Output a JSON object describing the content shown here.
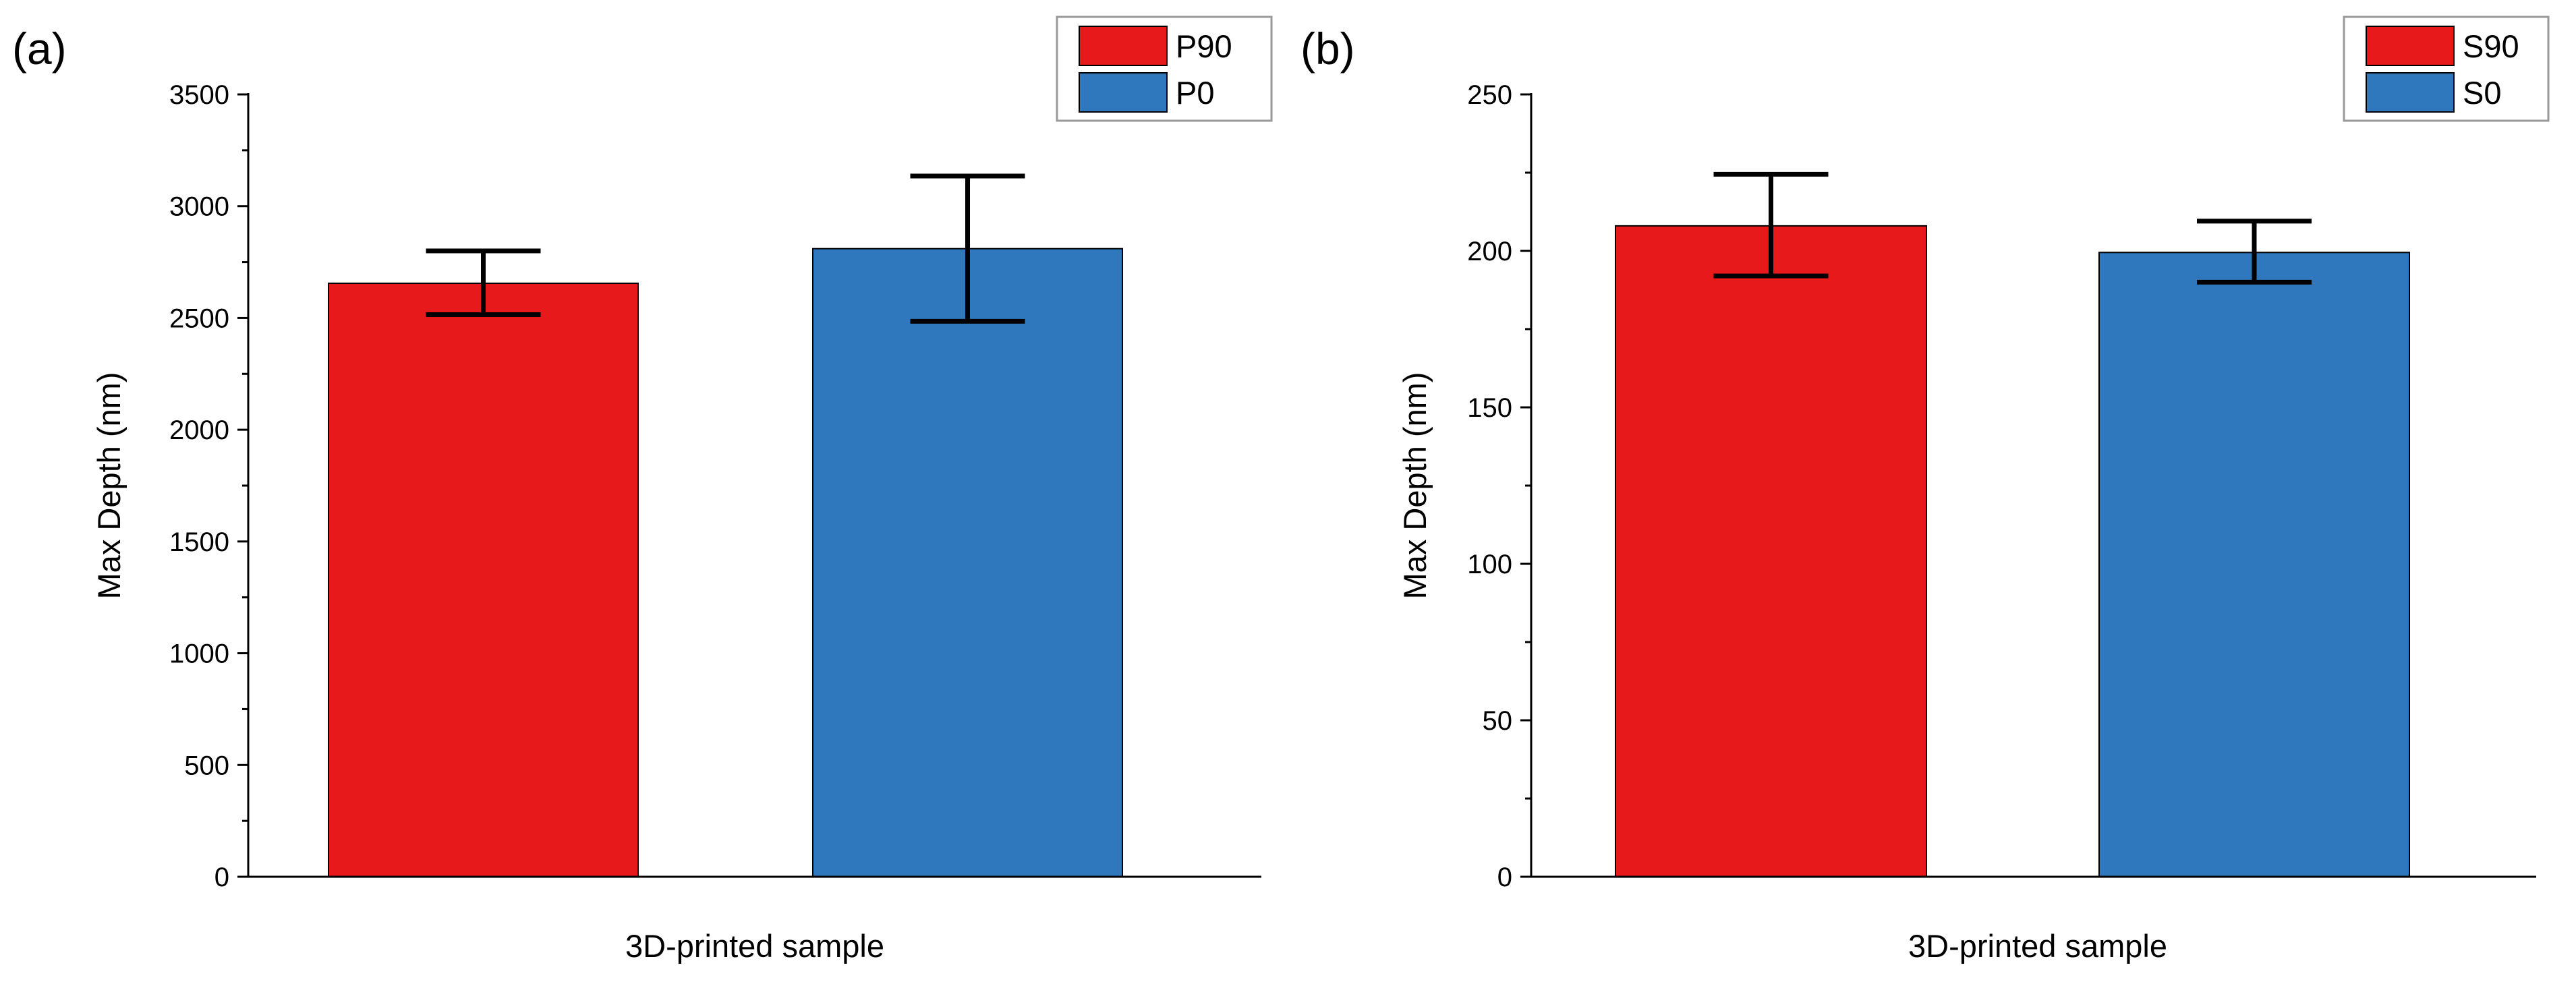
{
  "chart_data": [
    {
      "type": "bar",
      "panel_label": "(a)",
      "xlabel": "3D-printed sample",
      "ylabel": "Max Depth (nm)",
      "ylim": [
        0,
        3500
      ],
      "yticks": [
        0,
        500,
        1000,
        1500,
        2000,
        2500,
        3000,
        3500
      ],
      "legend_position": "top-right",
      "series": [
        {
          "name": "P90",
          "value": 2655,
          "error_low": 2515,
          "error_high": 2800,
          "color": "#e8191a"
        },
        {
          "name": "P0",
          "value": 2810,
          "error_low": 2485,
          "error_high": 3135,
          "color": "#2f78bd"
        }
      ]
    },
    {
      "type": "bar",
      "panel_label": "(b)",
      "xlabel": "3D-printed sample",
      "ylabel": "Max Depth (nm)",
      "ylim": [
        0,
        250
      ],
      "yticks": [
        0,
        50,
        100,
        150,
        200,
        250
      ],
      "legend_position": "top-right",
      "series": [
        {
          "name": "S90",
          "value": 208,
          "error_low": 192,
          "error_high": 224.5,
          "color": "#e8191a"
        },
        {
          "name": "S0",
          "value": 199.5,
          "error_low": 190,
          "error_high": 209.5,
          "color": "#2f78bd"
        }
      ]
    }
  ]
}
